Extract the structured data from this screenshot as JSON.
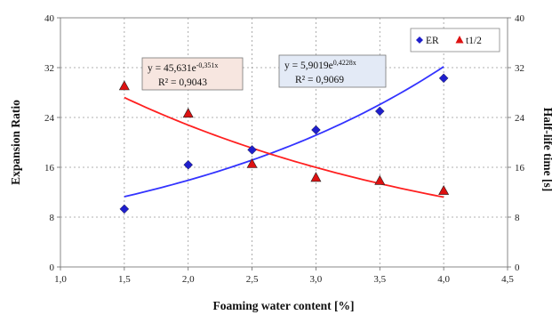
{
  "chart_data": {
    "type": "scatter",
    "xlabel": "Foaming water content [%]",
    "ylabel": "Expansion Ratio",
    "y2label": "Half-life time [s]",
    "xlim": [
      1.0,
      4.5
    ],
    "ylim": [
      0,
      40
    ],
    "y2lim": [
      0,
      40
    ],
    "x_ticks": [
      "1,0",
      "1,5",
      "2,0",
      "2,5",
      "3,0",
      "3,5",
      "4,0",
      "4,5"
    ],
    "y_ticks": [
      "0",
      "8",
      "16",
      "24",
      "32",
      "40"
    ],
    "y2_ticks": [
      "0",
      "8",
      "16",
      "24",
      "32",
      "40"
    ],
    "grid": true,
    "legend_position": "top-right",
    "series": [
      {
        "name": "ER",
        "marker": "diamond",
        "color": "#1f1fcc",
        "x": [
          1.5,
          2.0,
          2.5,
          3.0,
          3.5,
          4.0
        ],
        "y": [
          9.3,
          16.4,
          18.8,
          22.0,
          25.0,
          30.3
        ],
        "trend_color": "#3333ff"
      },
      {
        "name": "t1/2",
        "marker": "triangle",
        "color": "#dd1111",
        "x": [
          1.5,
          2.0,
          2.5,
          3.0,
          3.5,
          4.0
        ],
        "y": [
          29.0,
          24.6,
          16.5,
          14.3,
          13.8,
          12.2
        ],
        "trend_color": "#ff2020"
      }
    ],
    "annotations": [
      {
        "id": "t12",
        "line1_base": "y = 45,631e",
        "line1_exp": "-0,351x",
        "line2": "R² = 0,9043",
        "fill": "#f7e6e0"
      },
      {
        "id": "er",
        "line1_base": "y = 5,9019e",
        "line1_exp": "0,4228x",
        "line2": "R² = 0,9069",
        "fill": "#e3eaf6"
      }
    ]
  }
}
